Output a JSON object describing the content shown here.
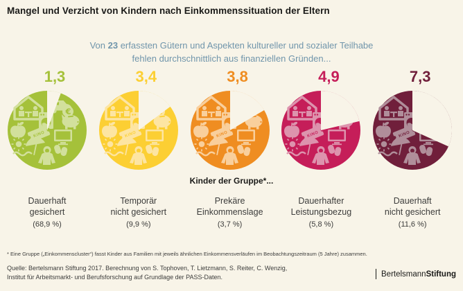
{
  "header": {
    "title": "Mangel und Verzicht von Kindern nach Einkommenssituation der Eltern"
  },
  "subtitle": {
    "prefix": "Von ",
    "bold": "23",
    "line1_rest": " erfassten Gütern und Aspekten kultureller und sozialer Teilhabe",
    "line2": "fehlen durchschnittlich aus finanziellen Gründen..."
  },
  "group_header": "Kinder der Gruppe*...",
  "chart_data": {
    "type": "pie",
    "title": "Mangel und Verzicht von Kindern nach Einkommenssituation der Eltern",
    "total_goods": 23,
    "layout": "5 Pac-Man-style pies, missing wedge = value/23, wedge starts at 12 o'clock sweeping clockwise",
    "groups": [
      {
        "value": 1.3,
        "value_label": "1,3",
        "label_line1": "Dauerhaft",
        "label_line2": "gesichert",
        "share_label": "(68,9 %)",
        "color": "#a5c13a",
        "icon_color": "#d2e09c"
      },
      {
        "value": 3.4,
        "value_label": "3,4",
        "label_line1": "Temporär",
        "label_line2": "nicht gesichert",
        "share_label": "(9,9 %)",
        "color": "#fccf33",
        "icon_color": "#fde5a2"
      },
      {
        "value": 3.8,
        "value_label": "3,8",
        "label_line1": "Prekäre",
        "label_line2": "Einkommenslage",
        "share_label": "(3,7 %)",
        "color": "#ef8d21",
        "icon_color": "#f9cf9c"
      },
      {
        "value": 4.9,
        "value_label": "4,9",
        "label_line1": "Dauerhafter",
        "label_line2": "Leistungsbezug",
        "share_label": "(5,8 %)",
        "color": "#c51e59",
        "icon_color": "#dd93ad"
      },
      {
        "value": 7.3,
        "value_label": "7,3",
        "label_line1": "Dauerhaft",
        "label_line2": "nicht gesichert",
        "share_label": "(11,6 %)",
        "color": "#701f3b",
        "icon_color": "#b08e9a"
      }
    ],
    "icons": [
      "family-at-home-icon",
      "car-icon",
      "washing-machine-icon",
      "euro-coin-icon",
      "piggy-bank-icon",
      "apple-icon",
      "cinema-ticket-icon",
      "tv-icon",
      "sun-icon",
      "beach-umbrella-icon",
      "jacket-icon",
      "mittens-icon"
    ],
    "ticket_text": "KINO",
    "euro_sign": "€"
  },
  "footnote": "* Eine Gruppe („Einkommenscluster“) fasst Kinder aus Familien mit jeweils ähnlichen Einkommensverläufen im Beobachtungszeitraum (5 Jahre) zusammen.",
  "source": {
    "line1": "Quelle: Bertelsmann Stiftung 2017. Berechnung von S. Tophoven, T. Lietzmann, S. Reiter, C. Wenzig,",
    "line2": "Institut für Arbeitsmarkt- und Berufsforschung auf Grundlage der PASS-Daten."
  },
  "logo": {
    "part1": "Bertelsmann",
    "part2": "Stiftung"
  },
  "colors": {
    "background": "#f8f4e8",
    "title": "#1a1a18",
    "subtitle": "#7095ab",
    "text": "#3c3c3b"
  }
}
